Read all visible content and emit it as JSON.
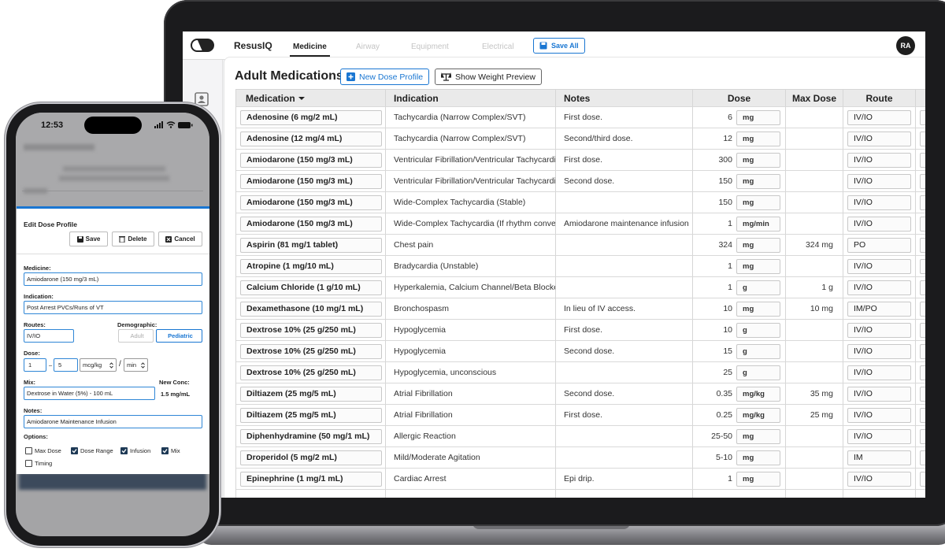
{
  "laptop": {
    "brand": "ResusIQ",
    "tabs": [
      {
        "label": "Medicine",
        "active": true
      },
      {
        "label": "Airway",
        "active": false
      },
      {
        "label": "Equipment",
        "active": false
      },
      {
        "label": "Electrical",
        "active": false
      }
    ],
    "save_all": "Save All",
    "avatar": "RA",
    "title": "Adult Medications",
    "buttons": [
      "New Dose Profile",
      "Show Weight Preview"
    ],
    "table": {
      "columns": [
        "Medication",
        "Indication",
        "Notes",
        "Dose",
        "Max Dose",
        "Route"
      ],
      "rows": [
        {
          "medication": "Adenosine (6 mg/2 mL)",
          "indication": "Tachycardia (Narrow Complex/SVT)",
          "notes": "First dose.",
          "dose": 6,
          "unit": "mg",
          "route": "IV/IO"
        },
        {
          "medication": "Adenosine (12 mg/4 mL)",
          "indication": "Tachycardia (Narrow Complex/SVT)",
          "notes": "Second/third dose.",
          "dose": 12,
          "unit": "mg",
          "route": "IV/IO"
        },
        {
          "medication": "Amiodarone (150 mg/3 mL)",
          "indication": "Ventricular Fibrillation/Ventricular Tachycardia",
          "notes": "First dose.",
          "dose": 300,
          "unit": "mg",
          "route": "IV/IO"
        },
        {
          "medication": "Amiodarone (150 mg/3 mL)",
          "indication": "Ventricular Fibrillation/Ventricular Tachycardia",
          "notes": "Second dose.",
          "dose": 150,
          "unit": "mg",
          "route": "IV/IO"
        },
        {
          "medication": "Amiodarone (150 mg/3 mL)",
          "indication": "Wide-Complex Tachycardia (Stable)",
          "dose": 150,
          "unit": "mg",
          "route": "IV/IO"
        },
        {
          "medication": "Amiodarone (150 mg/3 mL)",
          "indication": "Wide-Complex Tachycardia (If rhythm conver",
          "notes": "Amiodarone maintenance infusion",
          "dose": 1,
          "unit": "mg/min",
          "route": "IV/IO"
        },
        {
          "medication": "Aspirin (81 mg/1 tablet)",
          "indication": "Chest pain",
          "dose": 324,
          "unit": "mg",
          "max_dose": "324 mg",
          "route": "PO"
        },
        {
          "medication": "Atropine (1 mg/10 mL)",
          "indication": "Bradycardia (Unstable)",
          "dose": 1,
          "unit": "mg",
          "route": "IV/IO"
        },
        {
          "medication": "Calcium Chloride (1 g/10 mL)",
          "indication": "Hyperkalemia, Calcium Channel/Beta Blocker",
          "dose": 1,
          "unit": "g",
          "max_dose": "1 g",
          "route": "IV/IO"
        },
        {
          "medication": "Dexamethasone (10 mg/1 mL)",
          "indication": "Bronchospasm",
          "notes": "In lieu of IV access.",
          "dose": 10,
          "unit": "mg",
          "max_dose": "10 mg",
          "route": "IM/PO"
        },
        {
          "medication": "Dextrose 10% (25 g/250 mL)",
          "indication": "Hypoglycemia",
          "notes": "First dose.",
          "dose": 10,
          "unit": "g",
          "route": "IV/IO"
        },
        {
          "medication": "Dextrose 10% (25 g/250 mL)",
          "indication": "Hypoglycemia",
          "notes": "Second dose.",
          "dose": 15,
          "unit": "g",
          "route": "IV/IO"
        },
        {
          "medication": "Dextrose 10% (25 g/250 mL)",
          "indication": "Hypoglycemia, unconscious",
          "dose": 25,
          "unit": "g",
          "route": "IV/IO"
        },
        {
          "medication": "Diltiazem (25 mg/5 mL)",
          "indication": "Atrial Fibrillation",
          "notes": "Second dose.",
          "dose": 0.35,
          "unit": "mg/kg",
          "max_dose": "35 mg",
          "route": "IV/IO"
        },
        {
          "medication": "Diltiazem (25 mg/5 mL)",
          "indication": "Atrial Fibrillation",
          "notes": "First dose.",
          "dose": 0.25,
          "unit": "mg/kg",
          "max_dose": "25 mg",
          "route": "IV/IO"
        },
        {
          "medication": "Diphenhydramine (50 mg/1 mL)",
          "indication": "Allergic Reaction",
          "dose": "25-50",
          "unit": "mg",
          "route": "IV/IO"
        },
        {
          "medication": "Droperidol (5 mg/2 mL)",
          "indication": "Mild/Moderate Agitation",
          "dose": "5-10",
          "unit": "mg",
          "route": "IM"
        },
        {
          "medication": "Epinephrine (1 mg/1 mL)",
          "indication": "Cardiac Arrest",
          "notes": "Epi drip.",
          "dose": 1,
          "unit": "mg",
          "route": "IV/IO"
        }
      ]
    }
  },
  "phone": {
    "time": "12:53",
    "dialog": {
      "title": "Edit Dose Profile",
      "actions": [
        "Save",
        "Delete",
        "Cancel"
      ],
      "medicine": {
        "label": "Medicine:",
        "value": "Amiodarone (150 mg/3 mL)"
      },
      "indication": {
        "label": "Indication:",
        "value": "Post Arrest PVCs/Runs of VT"
      },
      "routes": {
        "label": "Routes:",
        "value": "IV/IO"
      },
      "demographic": {
        "label": "Demographic:",
        "options": [
          "Adult",
          "Pediatric"
        ],
        "selected_index": 1
      },
      "dose": {
        "label": "Dose:",
        "min": 1,
        "range_separator": "–",
        "max": 5,
        "unit": "mcg/kg",
        "per_separator": "/",
        "per": "min"
      },
      "mix": {
        "label": "Mix:",
        "value": "Dextrose in Water (5%) - 100 mL"
      },
      "new_conc": {
        "label": "New Conc:",
        "value": "1.5 mg/mL"
      },
      "notes": {
        "label": "Notes:",
        "value": "Amiodarone Maintenance Infusion"
      },
      "options": {
        "label": "Options:",
        "items": [
          {
            "label": "Max Dose",
            "checked": false
          },
          {
            "label": "Dose Range",
            "checked": true
          },
          {
            "label": "Infusion",
            "checked": true
          },
          {
            "label": "Mix",
            "checked": true
          },
          {
            "label": "Timing",
            "checked": false
          }
        ]
      }
    }
  }
}
